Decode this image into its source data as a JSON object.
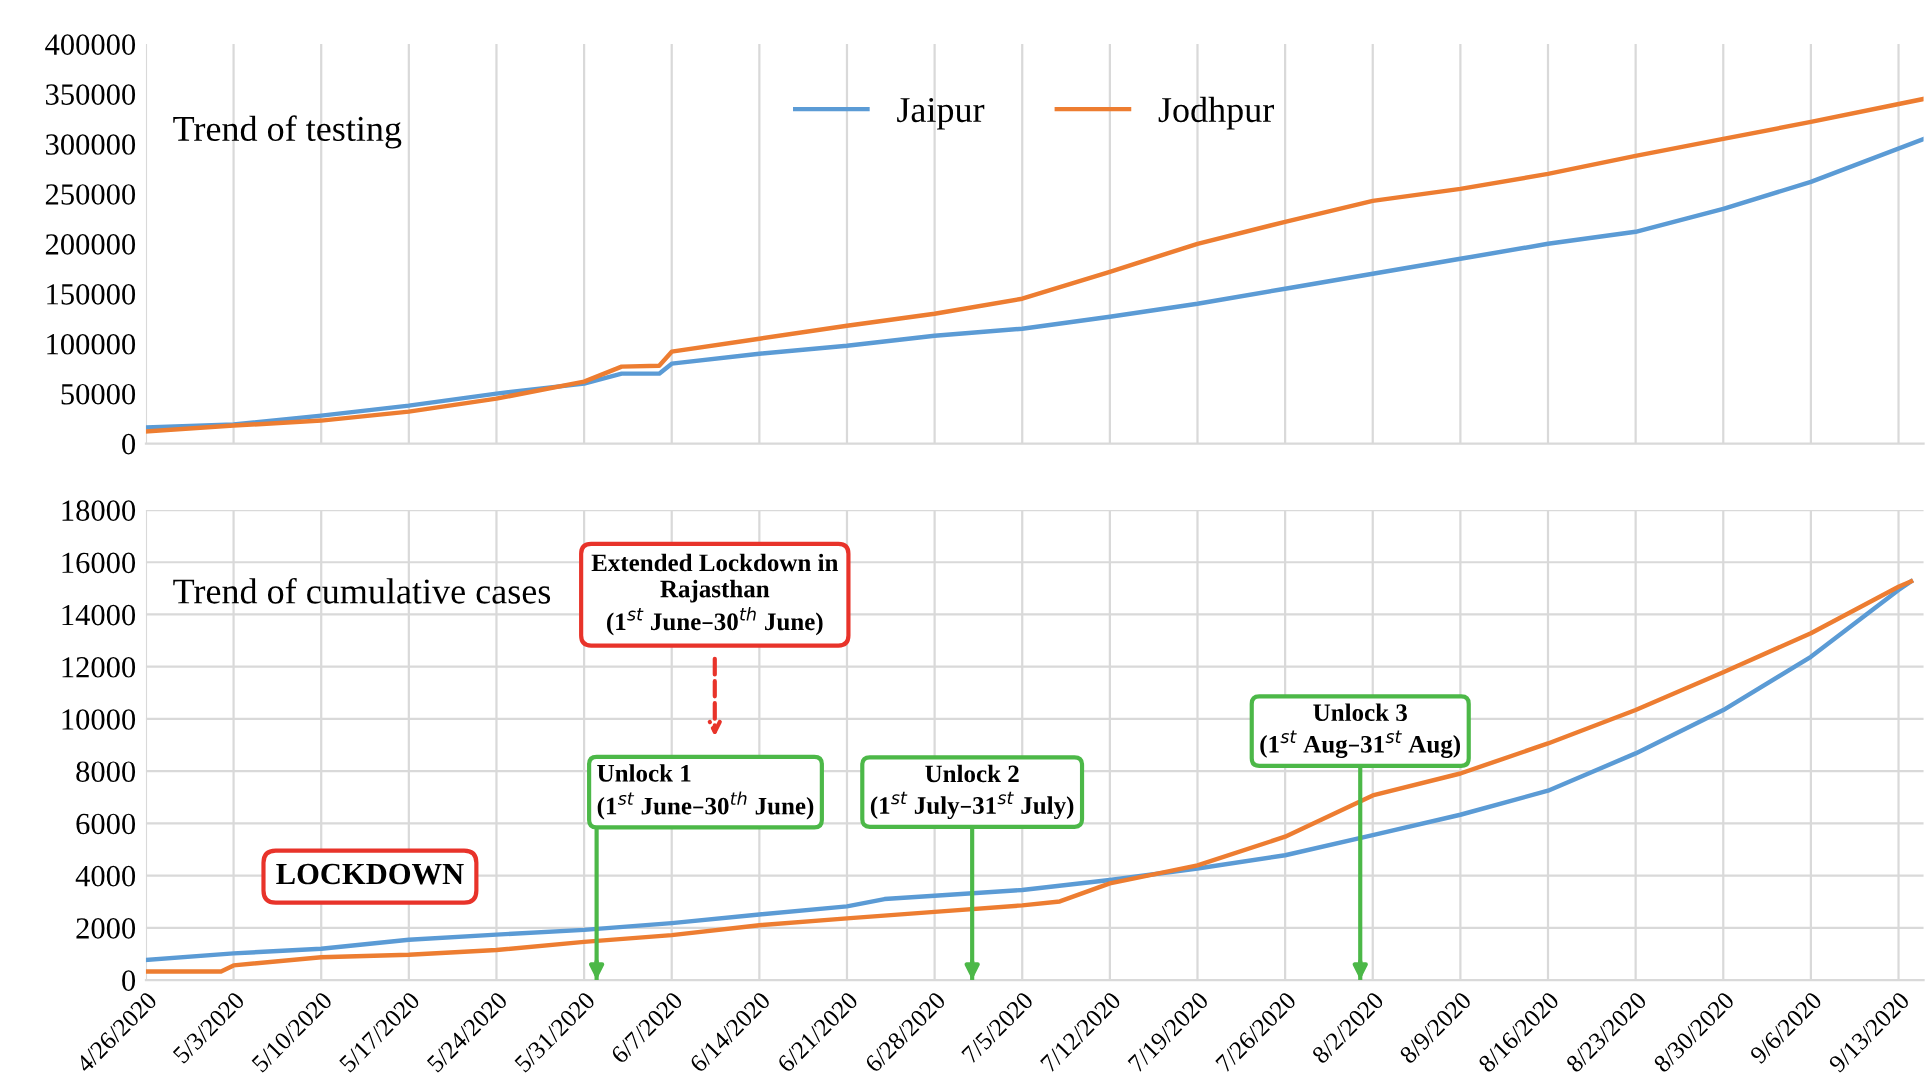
{
  "chart_data": [
    {
      "type": "line",
      "title": "Trend of testing",
      "xlim": [
        "2020-04-26",
        "2020-09-15"
      ],
      "ylim": [
        0,
        400000
      ],
      "yticks": [
        0,
        50000,
        100000,
        150000,
        200000,
        250000,
        300000,
        350000,
        400000
      ],
      "xticks": [
        {
          "value": "2020-04-26",
          "label": null
        },
        {
          "value": "2020-05-03",
          "label": null
        },
        {
          "value": "2020-05-10",
          "label": null
        },
        {
          "value": "2020-05-17",
          "label": null
        },
        {
          "value": "2020-05-24",
          "label": null
        },
        {
          "value": "2020-05-31",
          "label": null
        },
        {
          "value": "2020-06-07",
          "label": null
        },
        {
          "value": "2020-06-14",
          "label": null
        },
        {
          "value": "2020-06-21",
          "label": null
        },
        {
          "value": "2020-06-28",
          "label": null
        },
        {
          "value": "2020-07-05",
          "label": null
        },
        {
          "value": "2020-07-12",
          "label": null
        },
        {
          "value": "2020-07-19",
          "label": null
        },
        {
          "value": "2020-07-26",
          "label": null
        },
        {
          "value": "2020-08-02",
          "label": null
        },
        {
          "value": "2020-08-09",
          "label": null
        },
        {
          "value": "2020-08-16",
          "label": null
        },
        {
          "value": "2020-08-23",
          "label": null
        },
        {
          "value": "2020-08-30",
          "label": null
        },
        {
          "value": "2020-09-06",
          "label": null
        },
        {
          "value": "2020-09-13",
          "label": null
        }
      ],
      "tick_labels": "y",
      "grid": "x",
      "legend": "top",
      "marker": "none",
      "line_style": "solid",
      "series": [
        {
          "name": "Jaipur",
          "color": "#5b9bd5",
          "x": [
            "2020-04-26",
            "2020-05-03",
            "2020-05-10",
            "2020-05-17",
            "2020-05-24",
            "2020-05-31",
            "2020-06-03",
            "2020-06-06",
            "2020-06-07",
            "2020-06-14",
            "2020-06-21",
            "2020-06-28",
            "2020-07-05",
            "2020-07-12",
            "2020-07-19",
            "2020-07-26",
            "2020-08-02",
            "2020-08-09",
            "2020-08-16",
            "2020-08-23",
            "2020-08-30",
            "2020-09-06",
            "2020-09-15"
          ],
          "values": [
            16000,
            19000,
            28000,
            38000,
            50000,
            60000,
            70000,
            70000,
            80000,
            90000,
            98000,
            108000,
            115000,
            127000,
            140000,
            155000,
            170000,
            185000,
            200000,
            212000,
            235000,
            262000,
            305000
          ]
        },
        {
          "name": "Jodhpur",
          "color": "#ed7d31",
          "x": [
            "2020-04-26",
            "2020-05-03",
            "2020-05-10",
            "2020-05-17",
            "2020-05-24",
            "2020-05-31",
            "2020-06-03",
            "2020-06-06",
            "2020-06-07",
            "2020-06-14",
            "2020-06-21",
            "2020-06-28",
            "2020-07-05",
            "2020-07-12",
            "2020-07-19",
            "2020-07-26",
            "2020-08-02",
            "2020-08-09",
            "2020-08-16",
            "2020-08-23",
            "2020-08-30",
            "2020-09-06",
            "2020-09-15"
          ],
          "values": [
            12000,
            18000,
            23000,
            32000,
            45000,
            62000,
            77000,
            78000,
            92000,
            105000,
            118000,
            130000,
            145000,
            172000,
            200000,
            222000,
            243000,
            255000,
            270000,
            288000,
            305000,
            322000,
            345000
          ]
        }
      ]
    },
    {
      "type": "line",
      "title": "Trend of cumulative cases",
      "xlim": [
        "2020-04-26",
        "2020-09-15"
      ],
      "ylim": [
        0,
        18000
      ],
      "yticks": [
        0,
        2000,
        4000,
        6000,
        8000,
        10000,
        12000,
        14000,
        16000,
        18000
      ],
      "xticks": [
        {
          "value": "2020-04-26",
          "label": "4/26/2020"
        },
        {
          "value": "2020-05-03",
          "label": "5/3/2020"
        },
        {
          "value": "2020-05-10",
          "label": "5/10/2020"
        },
        {
          "value": "2020-05-17",
          "label": "5/17/2020"
        },
        {
          "value": "2020-05-24",
          "label": "5/24/2020"
        },
        {
          "value": "2020-05-31",
          "label": "5/31/2020"
        },
        {
          "value": "2020-06-07",
          "label": "6/7/2020"
        },
        {
          "value": "2020-06-14",
          "label": "6/14/2020"
        },
        {
          "value": "2020-06-21",
          "label": "6/21/2020"
        },
        {
          "value": "2020-06-28",
          "label": "6/28/2020"
        },
        {
          "value": "2020-07-05",
          "label": "7/5/2020"
        },
        {
          "value": "2020-07-12",
          "label": "7/12/2020"
        },
        {
          "value": "2020-07-19",
          "label": "7/19/2020"
        },
        {
          "value": "2020-07-26",
          "label": "7/26/2020"
        },
        {
          "value": "2020-08-02",
          "label": "8/2/2020"
        },
        {
          "value": "2020-08-09",
          "label": "8/9/2020"
        },
        {
          "value": "2020-08-16",
          "label": "8/16/2020"
        },
        {
          "value": "2020-08-23",
          "label": "8/23/2020"
        },
        {
          "value": "2020-08-30",
          "label": "8/30/2020"
        },
        {
          "value": "2020-09-06",
          "label": "9/6/2020"
        },
        {
          "value": "2020-09-13",
          "label": "9/13/2020"
        }
      ],
      "grid": true,
      "marker": "none",
      "line_style": "solid",
      "annotations": [
        "LOCKDOWN",
        "Extended Lockdown in\nRajasthan\n(1$^{st}$ June–30$^{th}$ June)"
      ],
      "ref_lines": [
        {
          "axis": "x",
          "value": "2020-06-01",
          "label": "Unlock 1\n(1$^{st}$ June–30$^{th}$ June)",
          "color": "#4cb848"
        },
        {
          "axis": "x",
          "value": "2020-07-01",
          "label": "Unlock 2\n(1$^{st}$ July–31$^{st}$ July)",
          "color": "#4cb848"
        },
        {
          "axis": "x",
          "value": "2020-08-01",
          "label": "Unlock 3\n(1$^{st}$ Aug–31$^{st}$ Aug)",
          "color": "#4cb848"
        }
      ],
      "series": [
        {
          "color": "#5b9bd5",
          "x": [
            "2020-04-26",
            "2020-05-03",
            "2020-05-10",
            "2020-05-17",
            "2020-05-24",
            "2020-05-31",
            "2020-06-07",
            "2020-06-14",
            "2020-06-21",
            "2020-06-24",
            "2020-06-28",
            "2020-07-05",
            "2020-07-12",
            "2020-07-19",
            "2020-07-26",
            "2020-08-02",
            "2020-08-09",
            "2020-08-16",
            "2020-08-23",
            "2020-08-30",
            "2020-09-06",
            "2020-09-13",
            "2020-09-14"
          ],
          "values": [
            770,
            1020,
            1200,
            1540,
            1740,
            1920,
            2180,
            2510,
            2820,
            3100,
            3230,
            3450,
            3830,
            4270,
            4780,
            5550,
            6330,
            7250,
            8680,
            10340,
            12380,
            14940,
            15270
          ]
        },
        {
          "color": "#ed7d31",
          "x": [
            "2020-04-26",
            "2020-05-02",
            "2020-05-03",
            "2020-05-10",
            "2020-05-17",
            "2020-05-24",
            "2020-05-31",
            "2020-06-07",
            "2020-06-14",
            "2020-06-21",
            "2020-06-28",
            "2020-07-05",
            "2020-07-08",
            "2020-07-12",
            "2020-07-19",
            "2020-07-26",
            "2020-08-02",
            "2020-08-09",
            "2020-08-16",
            "2020-08-23",
            "2020-08-30",
            "2020-09-06",
            "2020-09-13",
            "2020-09-14"
          ],
          "values": [
            330,
            330,
            560,
            870,
            970,
            1150,
            1460,
            1720,
            2100,
            2360,
            2610,
            2860,
            3010,
            3700,
            4390,
            5490,
            7070,
            7910,
            9060,
            10340,
            11790,
            13280,
            15060,
            15270
          ]
        }
      ]
    }
  ]
}
